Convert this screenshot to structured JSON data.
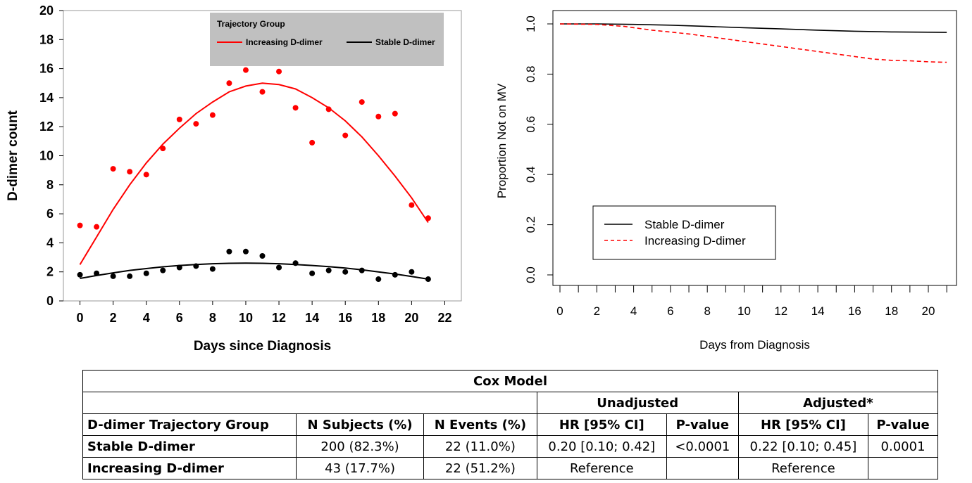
{
  "chart_data": [
    {
      "type": "scatter",
      "ylabel": "D-dimer count",
      "xlabel": "Days since Diagnosis",
      "xlim": [
        -1,
        23
      ],
      "ylim": [
        0,
        20
      ],
      "xticks": [
        0,
        2,
        4,
        6,
        8,
        10,
        12,
        14,
        16,
        18,
        20,
        22
      ],
      "yticks": [
        0,
        2,
        4,
        6,
        8,
        10,
        12,
        14,
        16,
        18,
        20
      ],
      "legend": {
        "title": "Trajectory Group",
        "position": "top-right"
      },
      "series": [
        {
          "name": "Increasing D-dimer",
          "color": "#ff0000",
          "x": [
            0,
            1,
            2,
            3,
            4,
            5,
            6,
            7,
            8,
            9,
            10,
            11,
            12,
            13,
            14,
            15,
            16,
            17,
            18,
            19,
            20,
            21
          ],
          "points": [
            5.2,
            5.1,
            9.1,
            8.9,
            8.7,
            10.5,
            12.5,
            12.2,
            12.8,
            15.0,
            15.9,
            14.4,
            15.8,
            13.3,
            10.9,
            13.2,
            11.4,
            13.7,
            12.7,
            12.9,
            6.6,
            5.7
          ],
          "fit": [
            2.5,
            4.4,
            6.3,
            8.0,
            9.5,
            10.8,
            11.9,
            12.9,
            13.7,
            14.4,
            14.8,
            15.0,
            14.9,
            14.6,
            14.0,
            13.3,
            12.4,
            11.3,
            10.0,
            8.6,
            7.1,
            5.4
          ]
        },
        {
          "name": "Stable D-dimer",
          "color": "#000000",
          "x": [
            0,
            1,
            2,
            3,
            4,
            5,
            6,
            7,
            8,
            9,
            10,
            11,
            12,
            13,
            14,
            15,
            16,
            17,
            18,
            19,
            20,
            21
          ],
          "points": [
            1.8,
            1.9,
            1.7,
            1.7,
            1.9,
            2.1,
            2.3,
            2.4,
            2.2,
            3.4,
            3.4,
            3.1,
            2.3,
            2.6,
            1.9,
            2.1,
            2.0,
            2.1,
            1.5,
            1.8,
            2.0,
            1.5
          ],
          "fit": [
            1.55,
            1.75,
            1.93,
            2.1,
            2.23,
            2.35,
            2.44,
            2.51,
            2.56,
            2.59,
            2.6,
            2.59,
            2.56,
            2.51,
            2.44,
            2.36,
            2.26,
            2.14,
            2.0,
            1.85,
            1.68,
            1.5
          ]
        }
      ]
    },
    {
      "type": "line",
      "ylabel": "Proportion Not on MV",
      "xlabel": "Days from Diagnosis",
      "xlim": [
        -1,
        21
      ],
      "ylim": [
        0,
        1
      ],
      "xticks": [
        0,
        2,
        4,
        6,
        8,
        10,
        12,
        14,
        16,
        18,
        20
      ],
      "yticks": [
        0.0,
        0.2,
        0.4,
        0.6,
        0.8,
        1.0
      ],
      "legend": {
        "position": "bottom-left"
      },
      "series": [
        {
          "name": "Stable D-dimer",
          "color": "#000000",
          "dash": false,
          "x": [
            0,
            2,
            4,
            6,
            8,
            10,
            12,
            14,
            16,
            18,
            20,
            21
          ],
          "values": [
            1.0,
            1.0,
            0.998,
            0.995,
            0.99,
            0.985,
            0.98,
            0.975,
            0.971,
            0.968,
            0.967,
            0.966
          ]
        },
        {
          "name": "Increasing D-dimer",
          "color": "#ff0000",
          "dash": true,
          "x": [
            0,
            2,
            3.5,
            5,
            7,
            9,
            10,
            12,
            14,
            16,
            17,
            18,
            19,
            20,
            21
          ],
          "values": [
            1.0,
            0.998,
            0.99,
            0.975,
            0.96,
            0.94,
            0.93,
            0.91,
            0.89,
            0.87,
            0.86,
            0.855,
            0.853,
            0.849,
            0.847
          ]
        }
      ]
    }
  ],
  "table": {
    "title": "Cox Model",
    "group_unadjusted": "Unadjusted",
    "group_adjusted": "Adjusted*",
    "headers": [
      "D-dimer Trajectory Group",
      "N Subjects (%)",
      "N Events (%)",
      "HR [95% CI]",
      "P-value",
      "HR [95% CI]",
      "P-value"
    ],
    "rows": [
      [
        "Stable D-dimer",
        "200 (82.3%)",
        "22 (11.0%)",
        "0.20 [0.10; 0.42]",
        "<0.0001",
        "0.22 [0.10; 0.45]",
        "0.0001"
      ],
      [
        "Increasing D-dimer",
        "43 (17.7%)",
        "22 (51.2%)",
        "Reference",
        "",
        "Reference",
        ""
      ]
    ]
  }
}
